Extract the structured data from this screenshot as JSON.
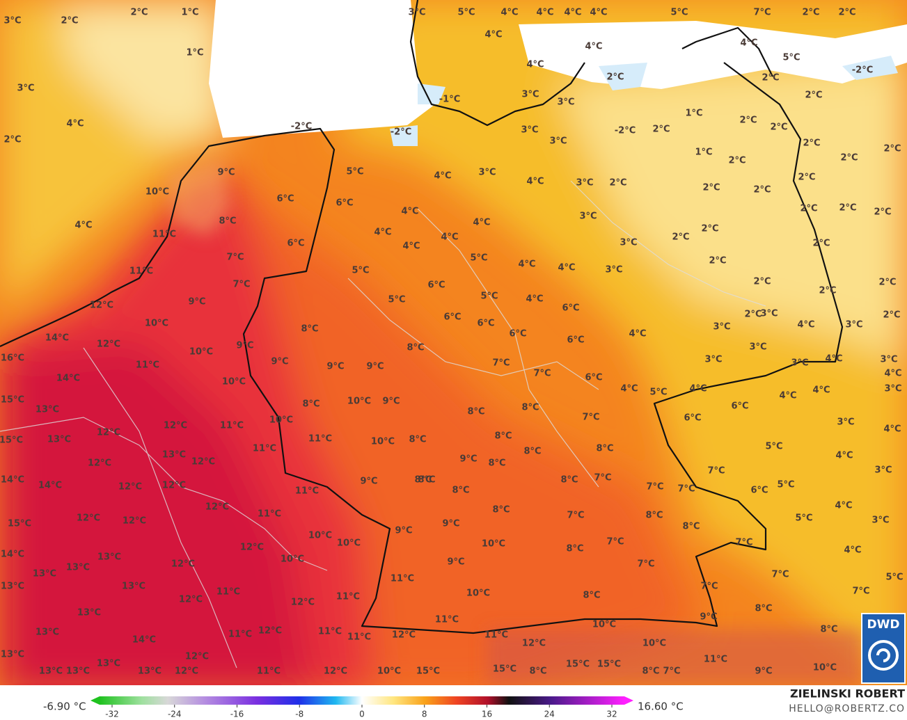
{
  "map": {
    "labels": [
      "3°C",
      "2°C",
      "2°C",
      "1°C",
      "1°C",
      "3°C",
      "4°C",
      "2°C",
      "4°C",
      "10°C",
      "9°C",
      "8°C",
      "11°C",
      "6°C",
      "6°C",
      "5°C",
      "6°C",
      "7°C",
      "11°C",
      "7°C",
      "12°C",
      "9°C",
      "10°C",
      "8°C",
      "14°C",
      "12°C",
      "9°C",
      "10°C",
      "9°C",
      "11°C",
      "16°C",
      "14°C",
      "10°C",
      "15°C",
      "13°C",
      "8°C",
      "10°C",
      "9°C",
      "12°C",
      "11°C",
      "10°C",
      "15°C",
      "13°C",
      "12°C",
      "11°C",
      "11°C",
      "13°C",
      "12°C",
      "10°C",
      "8°C",
      "12°C",
      "14°C",
      "14°C",
      "12°C",
      "12°C",
      "9°C",
      "8°C",
      "11°C",
      "12°C",
      "11°C",
      "12°C",
      "12°C",
      "15°C",
      "10°C",
      "10°C",
      "9°C",
      "12°C",
      "10°C",
      "14°C",
      "13°C",
      "12°C",
      "13°C",
      "13°C",
      "11°C",
      "13°C",
      "13°C",
      "12°C",
      "11°C",
      "11°C",
      "12°C",
      "13°C",
      "11°C",
      "12°C",
      "13°C",
      "14°C",
      "11°C",
      "13°C",
      "12°C",
      "13°C",
      "13°C",
      "13°C",
      "13°C",
      "12°C",
      "11°C",
      "12°C",
      "10°C",
      "15°C",
      "12°C",
      "11°C",
      "11°C",
      "11°C",
      "12°C",
      "15°C",
      "8°C",
      "15°C",
      "15°C",
      "8°C",
      "7°C",
      "10°C",
      "10°C",
      "11°C",
      "9°C",
      "10°C",
      "9°C",
      "8°C",
      "8°C",
      "7°C",
      "7°C",
      "7°C",
      "5°C",
      "4°C",
      "3°C",
      "7°C",
      "8°C",
      "8°C",
      "7°C",
      "8°C",
      "7°C",
      "10°C",
      "9°C",
      "8°C",
      "9°C",
      "10°C",
      "8°C",
      "7°C",
      "8°C",
      "8°C",
      "9°C",
      "8°C",
      "8°C",
      "8°C",
      "7°C",
      "7°C",
      "7°C",
      "7°C",
      "6°C",
      "5°C",
      "5°C",
      "4°C",
      "3°C",
      "4°C",
      "5°C",
      "6°C",
      "4°C",
      "4°C",
      "3°C",
      "4°C",
      "4°C",
      "4°C",
      "5°C",
      "6°C",
      "7°C",
      "8°C",
      "8°C",
      "8°C",
      "8°C",
      "7°C",
      "7°C",
      "6°C",
      "6°C",
      "6°C",
      "6°C",
      "6°C",
      "8°C",
      "9°C",
      "9°C",
      "5°C",
      "6°C",
      "5°C",
      "5°C",
      "4°C",
      "4°C",
      "4°C",
      "4°C",
      "6°C",
      "4°C",
      "3°C",
      "3°C",
      "3°C",
      "3°C",
      "2°C",
      "4°C",
      "4°C",
      "3°C",
      "4°C",
      "4°C",
      "4°C",
      "4°C",
      "5°C",
      "3°C",
      "3°C",
      "3°C",
      "3°C",
      "4°C",
      "4°C",
      "5°C",
      "4°C",
      "4°C",
      "4°C",
      "4°C",
      "5°C",
      "7°C",
      "2°C",
      "2°C",
      "4°C",
      "4°C",
      "5°C",
      "2°C",
      "-1°C",
      "-2°C",
      "-2°C",
      "-2°C",
      "2°C",
      "1°C",
      "2°C",
      "2°C",
      "2°C",
      "1°C",
      "2°C",
      "2°C",
      "2°C",
      "2°C",
      "2°C",
      "2°C",
      "2°C",
      "2°C",
      "2°C",
      "2°C",
      "2°C",
      "2°C",
      "2°C",
      "2°C",
      "2°C",
      "2°C",
      "2°C",
      "2°C",
      "3°C",
      "3°C",
      "3°C",
      "4°C",
      "3°C",
      "3°C",
      "3°C",
      "4°C",
      "3°C",
      "4°C",
      "3°C",
      "2°C",
      "-2°C",
      "3°C",
      "2°C"
    ]
  },
  "legend": {
    "min_label": "-6.90 °C",
    "max_label": "16.60 °C",
    "ticks": [
      -32,
      -24,
      -16,
      -8,
      0,
      8,
      16,
      24,
      32
    ]
  },
  "credits": {
    "author": "ZIELINSKI ROBERT",
    "email": "HELLO@ROBERTZ.CO",
    "logo": "DWD"
  }
}
